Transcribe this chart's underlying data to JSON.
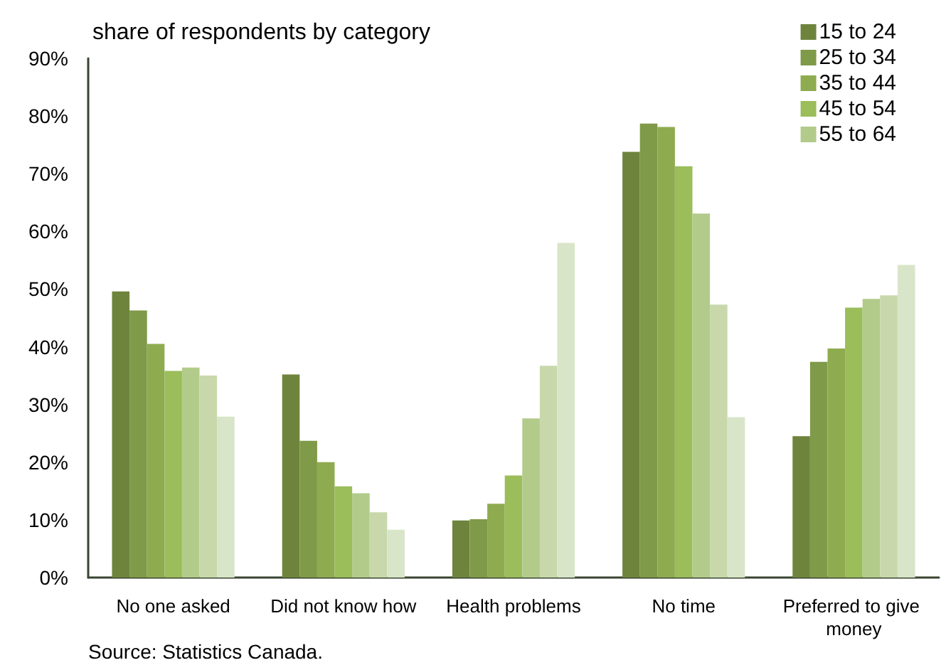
{
  "chart_data": {
    "type": "bar",
    "title": "share of respondents by category",
    "categories": [
      "No one asked",
      "Did not know how",
      "Health problems",
      "No time",
      "Preferred to give money"
    ],
    "series": [
      {
        "name": "15 to 24",
        "color": "#6e843d",
        "values": [
          49.6,
          35.2,
          9.9,
          73.8,
          24.5
        ]
      },
      {
        "name": "25 to 34",
        "color": "#7f9a48",
        "values": [
          46.3,
          23.7,
          10.1,
          78.7,
          37.4
        ]
      },
      {
        "name": "35 to 44",
        "color": "#8fab50",
        "values": [
          40.5,
          20.0,
          12.8,
          78.1,
          39.7
        ]
      },
      {
        "name": "45 to 54",
        "color": "#9bbd5a",
        "values": [
          35.8,
          15.8,
          17.7,
          71.3,
          46.8
        ]
      },
      {
        "name": "55 to 64",
        "color": "#b2cb8b",
        "values": [
          36.4,
          14.6,
          27.6,
          63.1,
          48.3
        ]
      },
      {
        "color": "#c8d8ab",
        "values": [
          35.0,
          11.3,
          36.7,
          47.3,
          48.9
        ]
      },
      {
        "color": "#d9e5c8",
        "values": [
          27.9,
          8.3,
          58.0,
          27.8,
          54.2
        ]
      }
    ],
    "ylim": [
      0,
      90
    ],
    "yticks": [
      {
        "value": 0,
        "label": "0%"
      },
      {
        "value": 10,
        "label": "10%"
      },
      {
        "value": 20,
        "label": "20%"
      },
      {
        "value": 30,
        "label": "30%"
      },
      {
        "value": 40,
        "label": "40%"
      },
      {
        "value": 50,
        "label": "50%"
      },
      {
        "value": 60,
        "label": "60%"
      },
      {
        "value": 70,
        "label": "70%"
      },
      {
        "value": 80,
        "label": "80%"
      },
      {
        "value": 90,
        "label": "90%"
      }
    ],
    "grid": false,
    "legend": "top right",
    "annotations": [
      "Source: Statistics Canada."
    ]
  }
}
